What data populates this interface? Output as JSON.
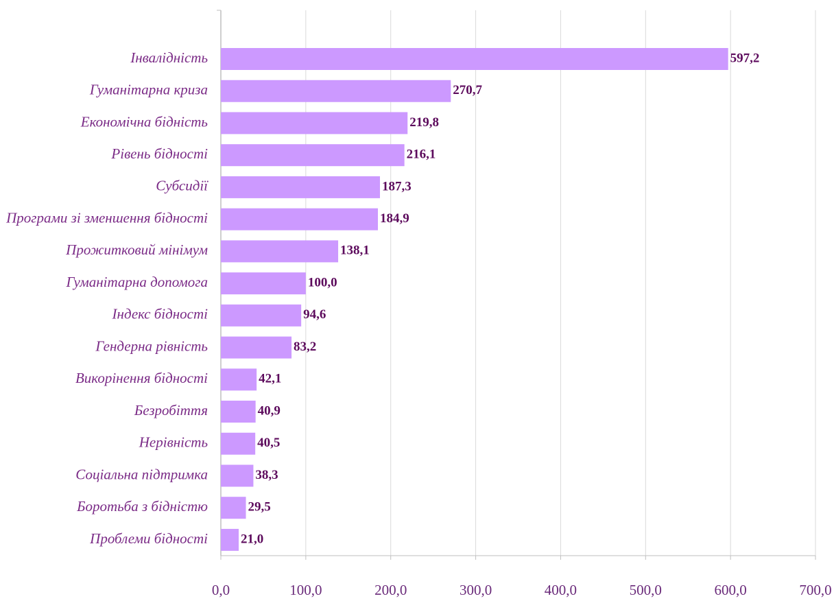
{
  "chart_data": {
    "type": "bar",
    "orientation": "horizontal",
    "categories": [
      "Інвалідність",
      "Гуманітарна криза",
      "Економічна бідність",
      "Рівень бідності",
      "Субсидії",
      "Програми зі зменшення бідності",
      "Прожитковий мінімум",
      "Гуманітарна допомога",
      "Індекс бідності",
      "Гендерна рівність",
      "Викорінення бідності",
      "Безробіття",
      "Нерівність",
      "Соціальна підтримка",
      "Боротьба з бідністю",
      "Проблеми бідності"
    ],
    "values": [
      597.2,
      270.7,
      219.8,
      216.1,
      187.3,
      184.9,
      138.1,
      100.0,
      94.6,
      83.2,
      42.1,
      40.9,
      40.5,
      38.3,
      29.5,
      21.0
    ],
    "value_labels": [
      "597,2",
      "270,7",
      "219,8",
      "216,1",
      "187,3",
      "184,9",
      "138,1",
      "100,0",
      "94,6",
      "83,2",
      "42,1",
      "40,9",
      "40,5",
      "38,3",
      "29,5",
      "21,0"
    ],
    "color": "#cc99ff",
    "xlim": [
      0,
      700
    ],
    "xticks": [
      {
        "value": 0,
        "label": "0,0"
      },
      {
        "value": 100,
        "label": "100,0"
      },
      {
        "value": 200,
        "label": "200,0"
      },
      {
        "value": 300,
        "label": "300,0"
      },
      {
        "value": 400,
        "label": "400,0"
      },
      {
        "value": 500,
        "label": "500,0"
      },
      {
        "value": 600,
        "label": "600,0"
      },
      {
        "value": 700,
        "label": "700,0"
      }
    ],
    "grid": true
  }
}
